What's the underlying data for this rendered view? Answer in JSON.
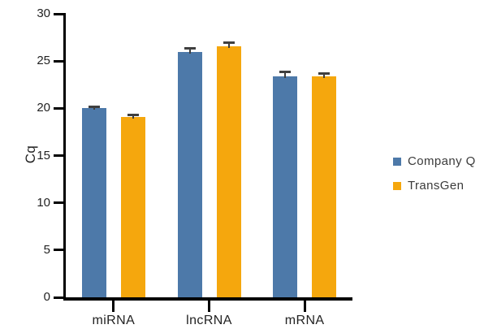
{
  "chart_data": {
    "type": "bar",
    "title": "",
    "xlabel": "",
    "ylabel": "Cq",
    "ylim": [
      0,
      30
    ],
    "yticks": [
      0,
      5,
      10,
      15,
      20,
      25,
      30
    ],
    "categories": [
      "miRNA",
      "lncRNA",
      "mRNA"
    ],
    "series": [
      {
        "name": "Company Q",
        "color": "#4D79A9",
        "values": [
          20.0,
          26.0,
          23.4
        ],
        "errors": [
          0.2,
          0.4,
          0.5
        ]
      },
      {
        "name": "TransGen",
        "color": "#F5A70D",
        "values": [
          19.1,
          26.6,
          23.4
        ],
        "errors": [
          0.2,
          0.4,
          0.35
        ]
      }
    ],
    "legend_position": "right",
    "grid": false,
    "error_bar_color": "#3F3F3F",
    "axis_color": "#000000"
  }
}
